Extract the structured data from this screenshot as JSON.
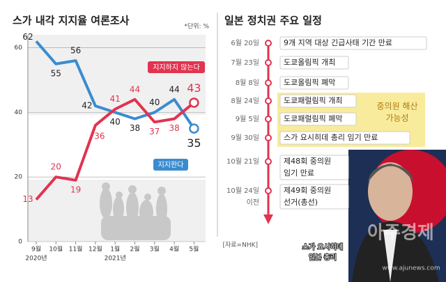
{
  "chart_data": {
    "type": "line",
    "title": "스가 내각 지지율 여론조사",
    "unit": "*단위: %",
    "categories": [
      "9월",
      "10월",
      "11월",
      "12월",
      "1월",
      "2월",
      "3월",
      "4월",
      "5월"
    ],
    "year_labels": [
      "2020년",
      null,
      null,
      null,
      "2021년",
      null,
      null,
      null,
      null
    ],
    "series": [
      {
        "name": "지지한다",
        "color": "#3a8ccf",
        "values": [
          62,
          55,
          56,
          42,
          40,
          38,
          40,
          44,
          35
        ]
      },
      {
        "name": "지지하지 않는다",
        "color": "#e2334f",
        "values": [
          13,
          20,
          19,
          36,
          41,
          44,
          37,
          38,
          43
        ]
      }
    ],
    "ylim": [
      0,
      64
    ],
    "yticks": [
      0,
      20,
      40,
      60
    ],
    "grid": true
  },
  "timeline": {
    "title": "일본 정치권 주요 일정",
    "events": [
      {
        "date": [
          "6월 20일"
        ],
        "text": [
          "9개 지역 대상 긴급사태 기간 만료"
        ]
      },
      {
        "date": [
          "7월 23일"
        ],
        "text": [
          "도쿄올림픽 개최"
        ]
      },
      {
        "date": [
          "8월 8일"
        ],
        "text": [
          "도쿄올림픽 폐막"
        ]
      },
      {
        "date": [
          "8월 24일"
        ],
        "text": [
          "도쿄패럴림픽 개최"
        ]
      },
      {
        "date": [
          "9월 5일"
        ],
        "text": [
          "도쿄패럴림픽 폐막"
        ]
      },
      {
        "date": [
          "9월 30일"
        ],
        "text": [
          "스가 요시히데 총리 임기 만료"
        ]
      },
      {
        "date": [
          "10월 21일"
        ],
        "text": [
          "제48회 중의원",
          "임기 만료"
        ]
      },
      {
        "date": [
          "10월 24일",
          "이전"
        ],
        "text": [
          "제49회 중의원",
          "선거(총선)"
        ]
      }
    ],
    "note": [
      "중의원 해산",
      "가능성"
    ],
    "source": "[자료=NHK]"
  },
  "photo": {
    "caption": [
      "스가 요시히데",
      "일본 총리"
    ],
    "watermark": "아주경제",
    "url": "www.ajunews.com"
  }
}
